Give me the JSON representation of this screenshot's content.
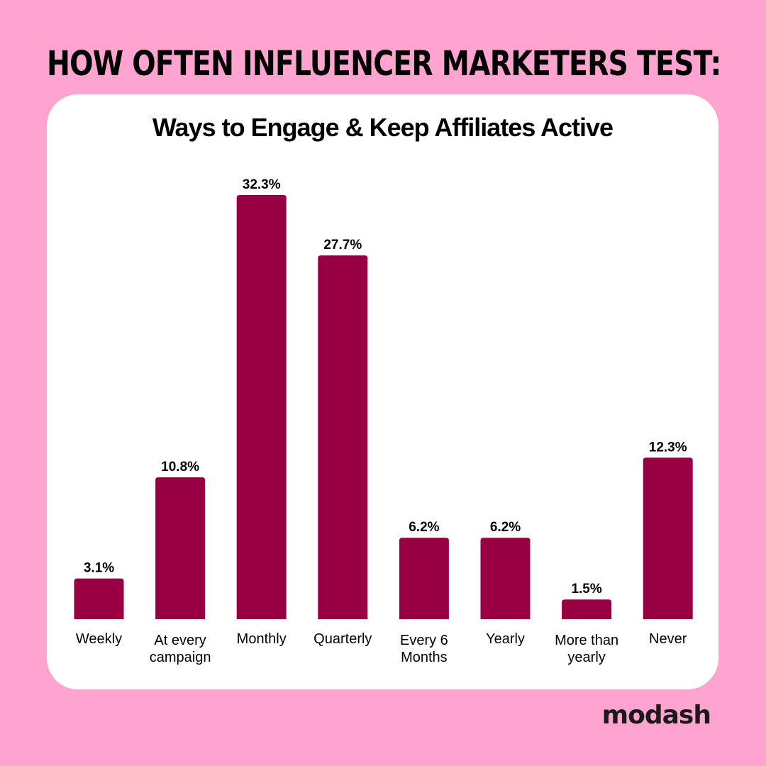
{
  "colors": {
    "background": "#ffa3d0",
    "card": "#ffffff",
    "bar": "#990044",
    "text": "#000000"
  },
  "headline": "HOW OFTEN INFLUENCER MARKETERS TEST:",
  "brand": "modash",
  "chart_data": {
    "type": "bar",
    "title": "Ways to Engage & Keep Affiliates Active",
    "xlabel": "",
    "ylabel": "",
    "ylim": [
      0,
      32.3
    ],
    "grid": false,
    "legend": "none",
    "categories": [
      [
        "Weekly"
      ],
      [
        "At every",
        "campaign"
      ],
      [
        "Monthly"
      ],
      [
        "Quarterly"
      ],
      [
        "Every 6",
        "Months"
      ],
      [
        "Yearly"
      ],
      [
        "More than",
        "yearly"
      ],
      [
        "Never"
      ]
    ],
    "values": [
      3.1,
      10.8,
      32.3,
      27.7,
      6.2,
      6.2,
      1.5,
      12.3
    ],
    "value_labels": [
      "3.1%",
      "10.8%",
      "32.3%",
      "27.7%",
      "6.2%",
      "6.2%",
      "1.5%",
      "12.3%"
    ]
  }
}
